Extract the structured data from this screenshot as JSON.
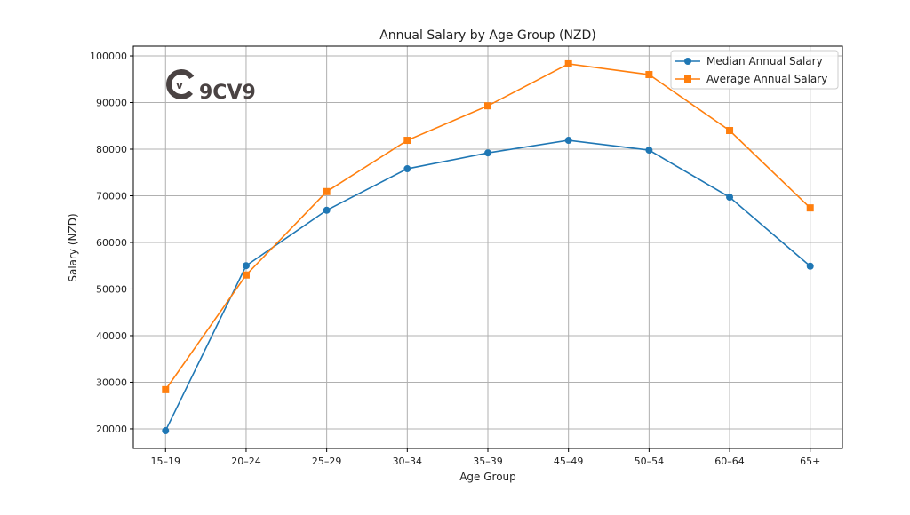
{
  "chart_data": {
    "type": "line",
    "title": "Annual Salary by Age Group (NZD)",
    "xlabel": "Age Group",
    "ylabel": "Salary (NZD)",
    "categories": [
      "15–19",
      "20–24",
      "25–29",
      "30–34",
      "35–39",
      "45–49",
      "50–54",
      "60–64",
      "65+"
    ],
    "yticks": [
      20000,
      30000,
      40000,
      50000,
      60000,
      70000,
      80000,
      90000,
      100000
    ],
    "ylim": [
      15800,
      102100
    ],
    "grid": true,
    "legend_position": "top-right",
    "series": [
      {
        "name": "Median Annual Salary",
        "color": "#1f77b4",
        "marker": "circle",
        "values": [
          19600,
          55000,
          66900,
          75800,
          79200,
          81900,
          79800,
          69700,
          54900
        ]
      },
      {
        "name": "Average Annual Salary",
        "color": "#ff7f0e",
        "marker": "square",
        "values": [
          28400,
          53000,
          70900,
          81900,
          89300,
          98300,
          96000,
          84000,
          67400
        ]
      }
    ]
  },
  "watermark": {
    "text": "9CV9",
    "color": "#4a4343"
  }
}
